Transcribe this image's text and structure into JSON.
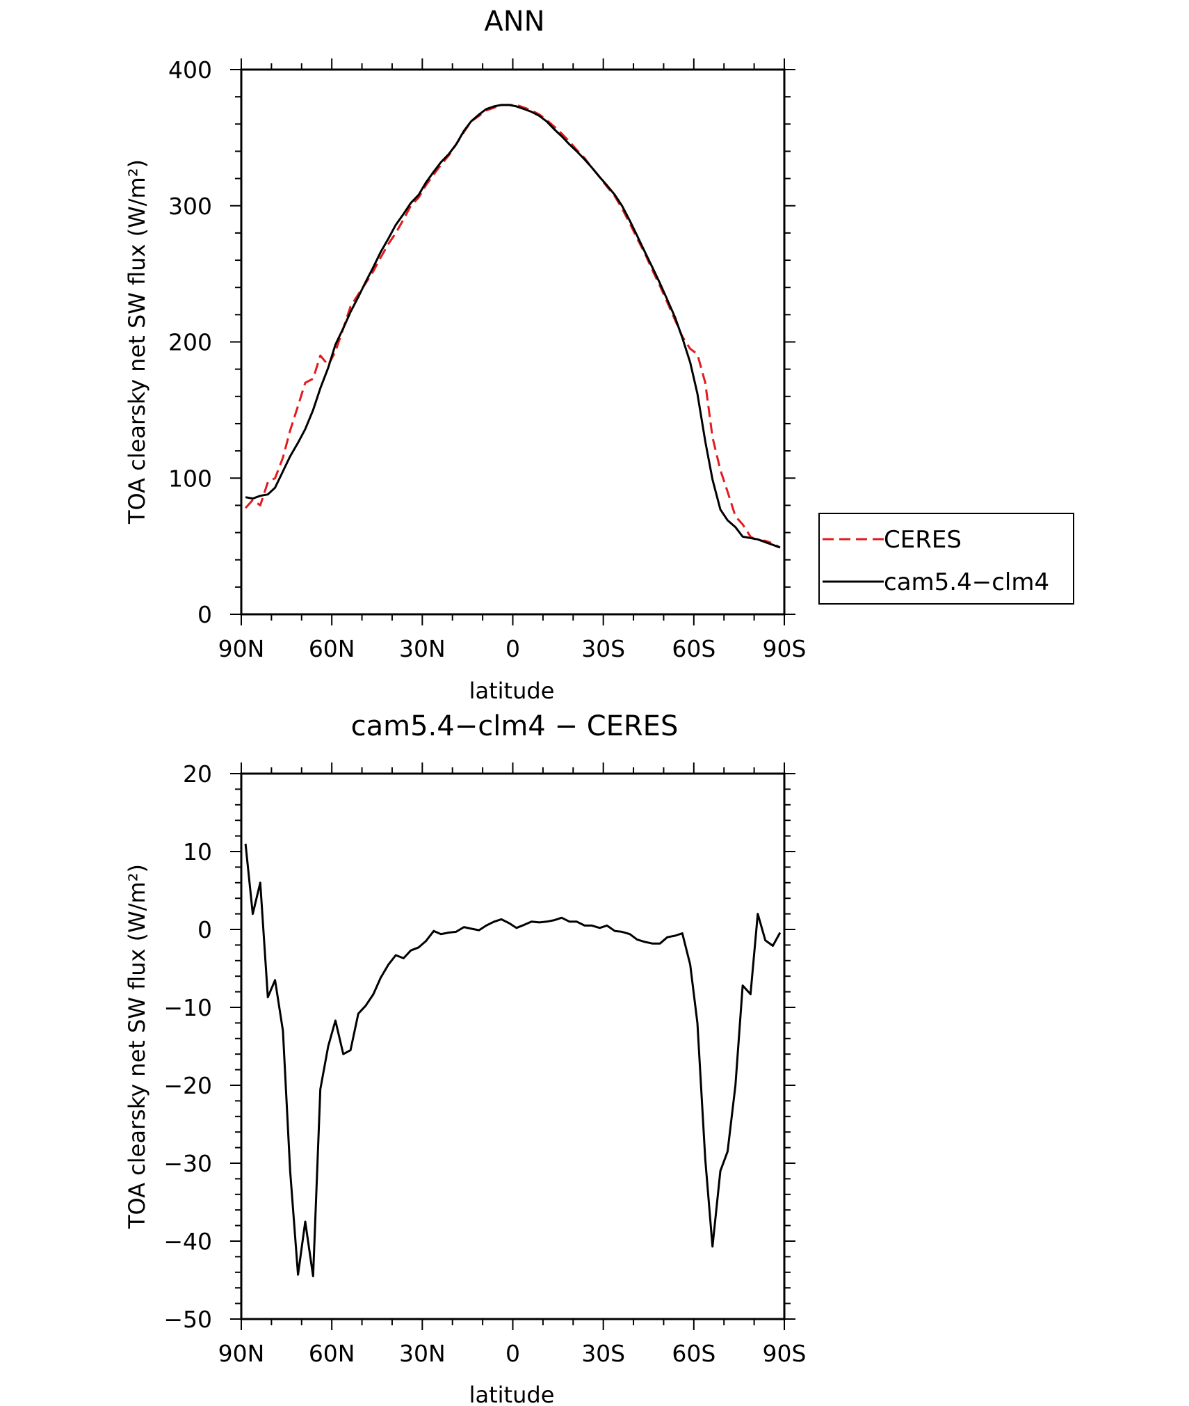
{
  "chart_data": [
    {
      "type": "line",
      "title": "ANN",
      "xlabel": "latitude",
      "ylabel": "TOA clearsky net SW flux (W/m²)",
      "xlim": [
        90,
        -90
      ],
      "ylim": [
        0,
        400
      ],
      "xticks": [
        90,
        60,
        30,
        0,
        -30,
        -60,
        -90
      ],
      "xtick_labels": [
        "90N",
        "60N",
        "30N",
        "0",
        "30S",
        "60S",
        "90S"
      ],
      "yticks": [
        0,
        100,
        200,
        300,
        400
      ],
      "ytick_labels": [
        "0",
        "100",
        "200",
        "300",
        "400"
      ],
      "grid": false,
      "legend": "right",
      "series": [
        {
          "name": "CERES",
          "color": "#e31a1c",
          "dash": "dashed",
          "x": [
            88.6,
            86.2,
            83.7,
            81.2,
            78.8,
            76.2,
            73.8,
            71.2,
            68.8,
            66.2,
            63.8,
            61.2,
            58.8,
            56.2,
            53.8,
            51.2,
            48.8,
            46.2,
            43.8,
            41.2,
            38.8,
            36.2,
            33.8,
            31.2,
            28.8,
            26.2,
            23.8,
            21.2,
            18.8,
            16.2,
            13.8,
            11.2,
            8.8,
            6.2,
            3.8,
            1.2,
            -1.2,
            -3.8,
            -6.2,
            -8.8,
            -11.2,
            -13.8,
            -16.2,
            -18.8,
            -21.2,
            -23.8,
            -26.2,
            -28.8,
            -31.2,
            -33.8,
            -36.2,
            -38.8,
            -41.2,
            -43.8,
            -46.2,
            -48.8,
            -51.2,
            -53.8,
            -56.2,
            -58.8,
            -61.2,
            -63.8,
            -66.2,
            -68.8,
            -71.2,
            -73.8,
            -76.2,
            -78.8,
            -81.2,
            -83.7,
            -86.2,
            -88.6
          ],
          "y": [
            78,
            84,
            80,
            97,
            100,
            115,
            135,
            153,
            170,
            173,
            190,
            183,
            193,
            210,
            226,
            235,
            243,
            252,
            262,
            272,
            280,
            290,
            300,
            306,
            315,
            323,
            330,
            337,
            345,
            354,
            362,
            366,
            370,
            372,
            374,
            374,
            374,
            372,
            370,
            367,
            363,
            358,
            353,
            347,
            341,
            335,
            328,
            321,
            314,
            307,
            298,
            287,
            276,
            265,
            253,
            241,
            229,
            216,
            204,
            195,
            191,
            170,
            130,
            106,
            90,
            72,
            66,
            57,
            54,
            54,
            52,
            49
          ]
        },
        {
          "name": "cam5.4−clm4",
          "color": "#000000",
          "dash": "solid",
          "x": [
            88.6,
            86.2,
            83.7,
            81.2,
            78.8,
            76.2,
            73.8,
            71.2,
            68.8,
            66.2,
            63.8,
            61.2,
            58.8,
            56.2,
            53.8,
            51.2,
            48.8,
            46.2,
            43.8,
            41.2,
            38.8,
            36.2,
            33.8,
            31.2,
            28.8,
            26.2,
            23.8,
            21.2,
            18.8,
            16.2,
            13.8,
            11.2,
            8.8,
            6.2,
            3.8,
            1.2,
            -1.2,
            -3.8,
            -6.2,
            -8.8,
            -11.2,
            -13.8,
            -16.2,
            -18.8,
            -21.2,
            -23.8,
            -26.2,
            -28.8,
            -31.2,
            -33.8,
            -36.2,
            -38.8,
            -41.2,
            -43.8,
            -46.2,
            -48.8,
            -51.2,
            -53.8,
            -56.2,
            -58.8,
            -61.2,
            -63.8,
            -66.2,
            -68.8,
            -71.2,
            -73.8,
            -76.2,
            -78.8,
            -81.2,
            -83.7,
            -86.2,
            -88.6
          ],
          "y": [
            86,
            85,
            87,
            88,
            93,
            105,
            116,
            126,
            136,
            150,
            166,
            181,
            198,
            210,
            222,
            233,
            244,
            255,
            266,
            276,
            286,
            294,
            302,
            308,
            317,
            325,
            332,
            338,
            345,
            355,
            362,
            367,
            371,
            373,
            374,
            374,
            373,
            371,
            369,
            366,
            362,
            356,
            351,
            345,
            340,
            334,
            328,
            321,
            315,
            308,
            300,
            289,
            278,
            266,
            255,
            243,
            231,
            218,
            203,
            185,
            162,
            127,
            99,
            77,
            69,
            64,
            57,
            56,
            55,
            53,
            51,
            49
          ]
        }
      ]
    },
    {
      "type": "line",
      "title": "cam5.4−clm4 − CERES",
      "xlabel": "latitude",
      "ylabel": "TOA clearsky net SW flux (W/m²)",
      "xlim": [
        90,
        -90
      ],
      "ylim": [
        -50,
        20
      ],
      "xticks": [
        90,
        60,
        30,
        0,
        -30,
        -60,
        -90
      ],
      "xtick_labels": [
        "90N",
        "60N",
        "30N",
        "0",
        "30S",
        "60S",
        "90S"
      ],
      "yticks": [
        -50,
        -40,
        -30,
        -20,
        -10,
        0,
        10,
        20
      ],
      "ytick_labels": [
        "−50",
        "−40",
        "−30",
        "−20",
        "−10",
        "0",
        "10",
        "20"
      ],
      "grid": false,
      "series": [
        {
          "color": "#000000",
          "dash": "solid",
          "x": [
            88.6,
            86.2,
            83.7,
            81.2,
            78.8,
            76.2,
            73.8,
            71.2,
            68.8,
            66.2,
            63.8,
            61.2,
            58.8,
            56.2,
            53.8,
            51.2,
            48.8,
            46.2,
            43.8,
            41.2,
            38.8,
            36.2,
            33.8,
            31.2,
            28.8,
            26.2,
            23.8,
            21.2,
            18.8,
            16.2,
            13.8,
            11.2,
            8.8,
            6.2,
            3.8,
            1.2,
            -1.2,
            -3.8,
            -6.2,
            -8.8,
            -11.2,
            -13.8,
            -16.2,
            -18.8,
            -21.2,
            -23.8,
            -26.2,
            -28.8,
            -31.2,
            -33.8,
            -36.2,
            -38.8,
            -41.2,
            -43.8,
            -46.2,
            -48.8,
            -51.2,
            -53.8,
            -56.2,
            -58.8,
            -61.2,
            -63.8,
            -66.2,
            -68.8,
            -71.2,
            -73.8,
            -76.2,
            -78.8,
            -81.2,
            -83.7,
            -86.2,
            -88.6
          ],
          "y": [
            11,
            2,
            6,
            -8.7,
            -6.5,
            -13,
            -31,
            -44.3,
            -37.5,
            -44.5,
            -20.5,
            -15,
            -11.7,
            -16,
            -15.5,
            -10.8,
            -9.8,
            -8.3,
            -6.2,
            -4.5,
            -3.3,
            -3.7,
            -2.7,
            -2.3,
            -1.5,
            -0.2,
            -0.6,
            -0.4,
            -0.3,
            0.3,
            0.1,
            -0.1,
            0.5,
            1.0,
            1.3,
            0.8,
            0.2,
            0.6,
            1.0,
            0.9,
            1.0,
            1.2,
            1.5,
            1.0,
            1.0,
            0.5,
            0.5,
            0.2,
            0.5,
            -0.2,
            -0.3,
            -0.6,
            -1.3,
            -1.6,
            -1.8,
            -1.8,
            -1.0,
            -0.8,
            -0.5,
            -4.5,
            -12,
            -29.5,
            -40.7,
            -31,
            -28.5,
            -20,
            -7.2,
            -8.3,
            2,
            -1.4,
            -2.1,
            -0.4
          ]
        }
      ]
    }
  ]
}
